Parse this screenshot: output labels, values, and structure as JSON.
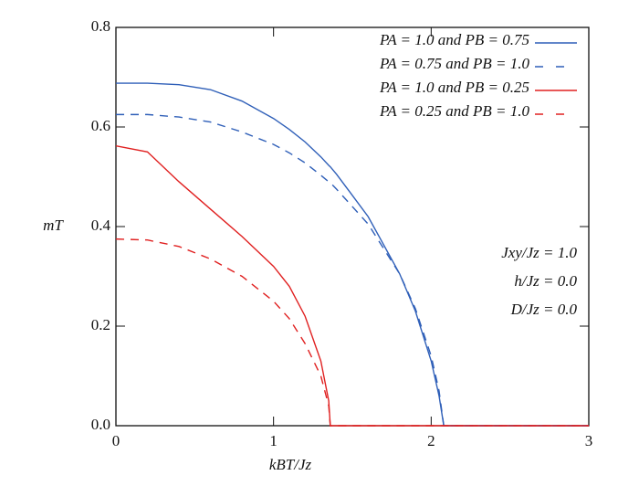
{
  "chart_data": {
    "type": "line",
    "x_label": "kBT/Jz",
    "y_label": "mT",
    "x": [
      0,
      0.2,
      0.4,
      0.6,
      0.8,
      1.0,
      1.1,
      1.2,
      1.3,
      1.35,
      1.36,
      1.4,
      1.6,
      1.8,
      1.9,
      2.0,
      2.05,
      2.08,
      2.5,
      3
    ],
    "series": [
      {
        "name": "PA = 1.0 and PB = 0.75",
        "color": "#2f5fb8",
        "dashed": false,
        "values": [
          0.688,
          0.688,
          0.685,
          0.675,
          0.652,
          0.617,
          0.595,
          0.57,
          0.54,
          0.523,
          0.52,
          0.505,
          0.42,
          0.305,
          0.23,
          0.13,
          0.06,
          0,
          0,
          0
        ]
      },
      {
        "name": "PA = 0.75 and PB = 1.0",
        "color": "#2f5fb8",
        "dashed": true,
        "values": [
          0.625,
          0.625,
          0.62,
          0.61,
          0.59,
          0.565,
          0.548,
          0.528,
          0.503,
          0.49,
          0.488,
          0.475,
          0.405,
          0.305,
          0.235,
          0.14,
          0.07,
          0,
          0,
          0
        ]
      },
      {
        "name": "PA = 1.0 and PB = 0.25",
        "color": "#e02020",
        "dashed": false,
        "values": [
          0.562,
          0.55,
          0.49,
          0.435,
          0.38,
          0.32,
          0.28,
          0.22,
          0.13,
          0.05,
          0,
          0,
          0,
          0,
          0,
          0,
          0,
          0,
          0,
          0
        ]
      },
      {
        "name": "PA = 0.25 and PB = 1.0",
        "color": "#e02020",
        "dashed": true,
        "values": [
          0.375,
          0.373,
          0.36,
          0.335,
          0.3,
          0.25,
          0.215,
          0.165,
          0.1,
          0.04,
          0,
          0,
          0,
          0,
          0,
          0,
          0,
          0,
          0,
          0
        ]
      }
    ],
    "annotations": [
      "Jxy/Jz = 1.0",
      "h/Jz = 0.0",
      "D/Jz = 0.0"
    ],
    "xlim": [
      0,
      3
    ],
    "ylim": [
      0,
      0.8
    ],
    "xticks": [
      0,
      1,
      2,
      3
    ],
    "yticks": [
      {
        "value": 0,
        "label": "0.0"
      },
      0.2,
      0.4,
      0.6,
      0.8
    ],
    "legend": "top-right"
  }
}
